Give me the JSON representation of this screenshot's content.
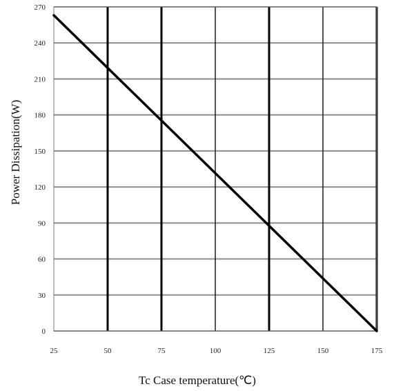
{
  "chart_data": {
    "type": "line",
    "xlabel": "Tc Case temperature(℃)",
    "ylabel": "Power Dissipation(W)",
    "xlim": [
      25,
      175
    ],
    "ylim": [
      0,
      270
    ],
    "xticks": [
      25,
      50,
      75,
      100,
      125,
      150,
      175
    ],
    "yticks": [
      0,
      30,
      60,
      90,
      120,
      150,
      180,
      210,
      240,
      270
    ],
    "xtick_labels": [
      "25",
      "50",
      "75",
      "100",
      "125",
      "150",
      "175"
    ],
    "ytick_labels": [
      "0",
      "30",
      "60",
      "90",
      "120",
      "150",
      "180",
      "210",
      "240",
      "270"
    ],
    "grid": true,
    "series": [
      {
        "x": [
          25,
          175
        ],
        "y": [
          263,
          0
        ]
      }
    ],
    "colors": {
      "line": "#000000",
      "grid_major": "#000000",
      "grid_minor": "#8c8c8c",
      "background": "#ffffff"
    }
  }
}
